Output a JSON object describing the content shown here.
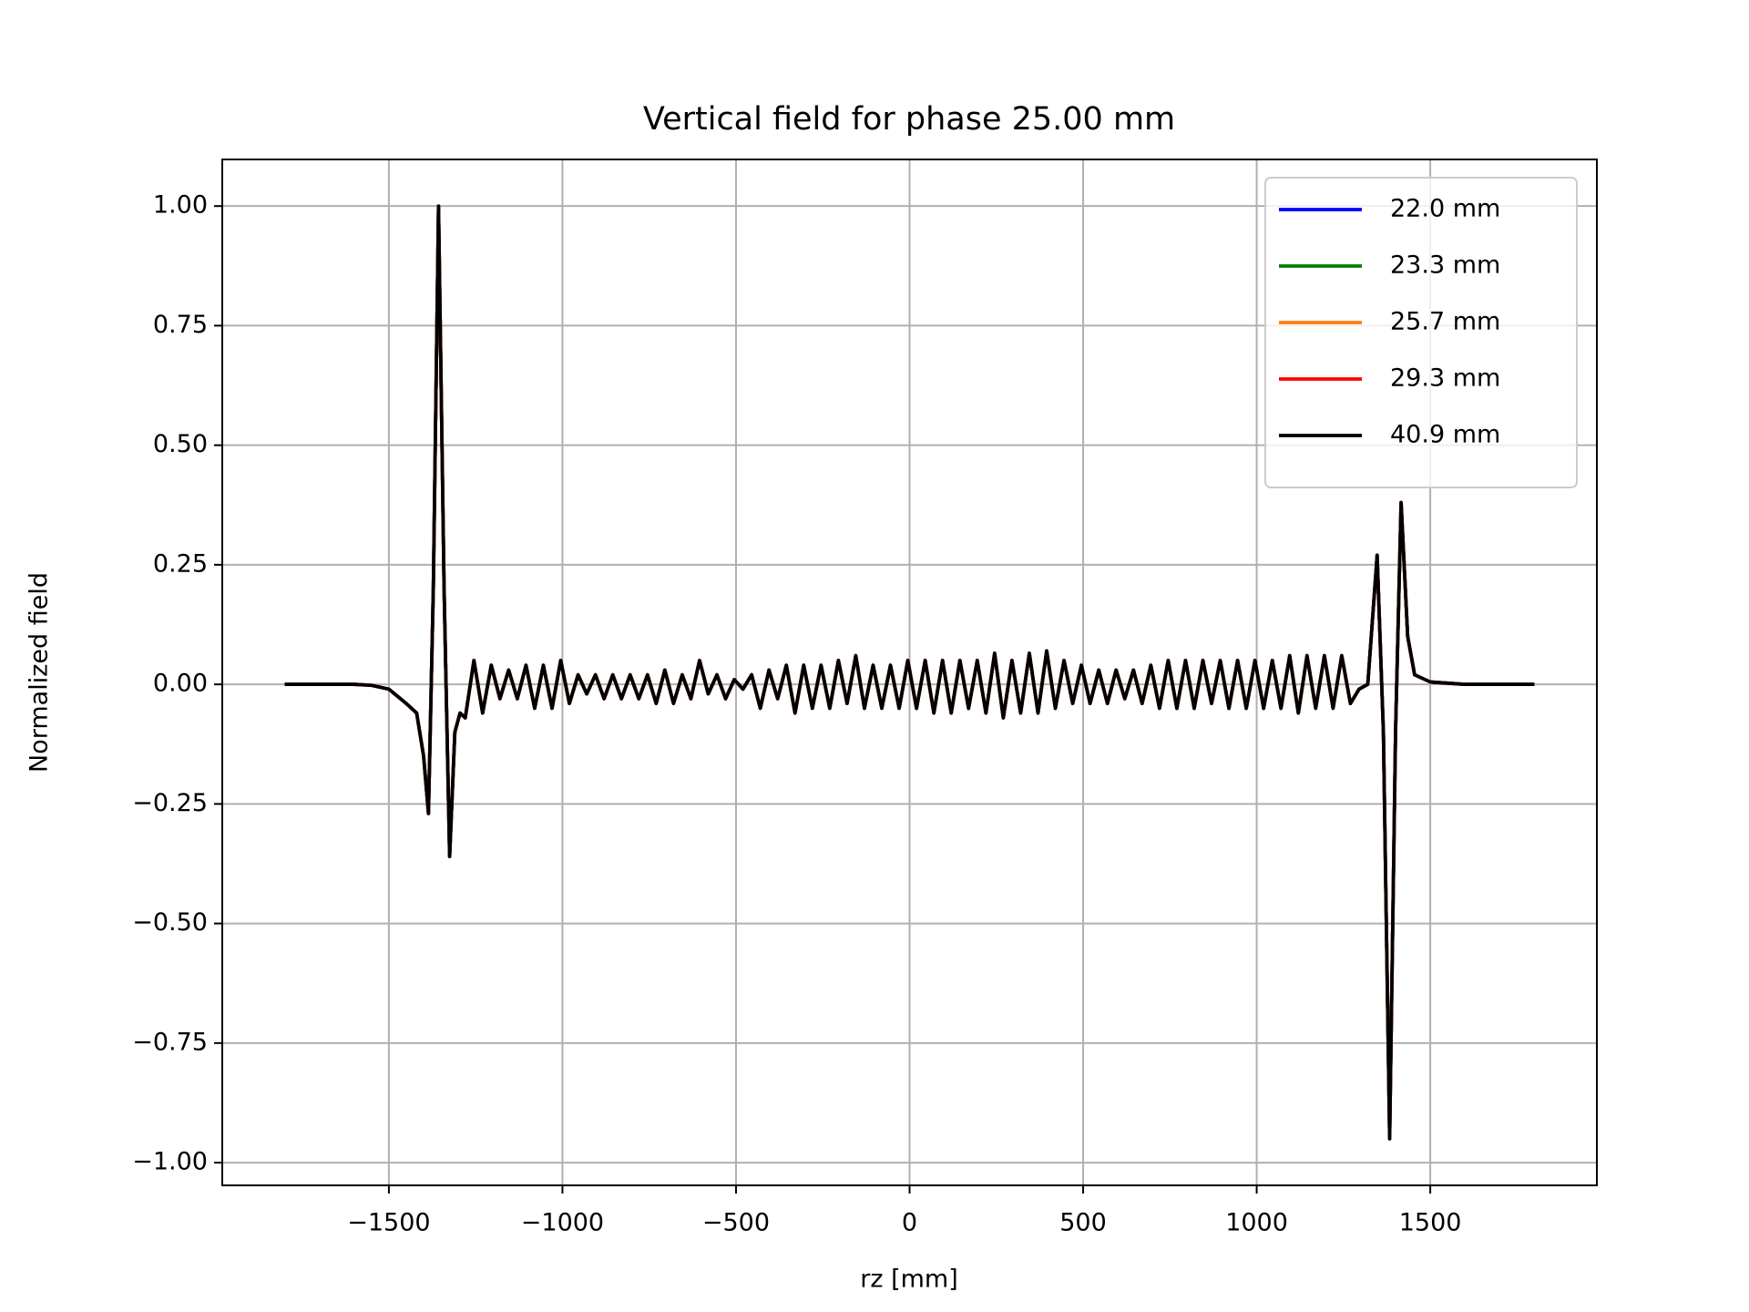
{
  "chart_data": {
    "type": "line",
    "title": "Vertical field for phase 25.00 mm",
    "x_label": "rz [mm]",
    "y_label": "Normalized field",
    "grid": true,
    "legend": "upper right",
    "xlim": [
      -1980,
      1980
    ],
    "xticks": [
      {
        "value": -1500,
        "label": "−1500"
      },
      {
        "value": -1000,
        "label": "−1000"
      },
      {
        "value": -500,
        "label": "−500"
      },
      0,
      500,
      1000,
      1500
    ],
    "ylim": [
      -1.0475,
      1.0975
    ],
    "yticks": [
      {
        "value": -1,
        "label": "−1.00"
      },
      {
        "value": -0.75,
        "label": "−0.75"
      },
      {
        "value": -0.5,
        "label": "−0.50"
      },
      {
        "value": -0.25,
        "label": "−0.25"
      },
      {
        "value": 0,
        "label": "0.00"
      },
      {
        "value": 0.25,
        "label": "0.25"
      },
      {
        "value": 0.5,
        "label": "0.50"
      },
      {
        "value": 0.75,
        "label": "0.75"
      },
      {
        "value": 1,
        "label": "1.00"
      }
    ],
    "x": [
      -1800,
      -1700,
      -1600,
      -1550,
      -1500,
      -1450,
      -1420,
      -1400,
      -1386,
      -1372,
      -1357,
      -1341,
      -1325,
      -1310,
      -1295,
      -1280,
      -1255,
      -1230,
      -1205,
      -1180,
      -1155,
      -1130,
      -1105,
      -1080,
      -1055,
      -1030,
      -1005,
      -980,
      -955,
      -930,
      -905,
      -880,
      -855,
      -830,
      -805,
      -780,
      -755,
      -730,
      -705,
      -680,
      -655,
      -630,
      -605,
      -580,
      -555,
      -530,
      -505,
      -480,
      -455,
      -430,
      -405,
      -380,
      -355,
      -330,
      -305,
      -280,
      -255,
      -230,
      -205,
      -180,
      -155,
      -130,
      -105,
      -80,
      -55,
      -30,
      -5,
      20,
      45,
      70,
      95,
      120,
      145,
      170,
      195,
      220,
      245,
      270,
      295,
      320,
      345,
      370,
      395,
      420,
      445,
      470,
      495,
      520,
      545,
      570,
      595,
      620,
      645,
      670,
      695,
      720,
      745,
      770,
      795,
      820,
      845,
      870,
      895,
      920,
      945,
      970,
      995,
      1020,
      1045,
      1070,
      1095,
      1120,
      1145,
      1170,
      1195,
      1220,
      1245,
      1270,
      1295,
      1320,
      1347,
      1365,
      1383,
      1400,
      1416,
      1435,
      1455,
      1500,
      1600,
      1700,
      1800
    ],
    "series": [
      {
        "name": "22.0 mm",
        "color": "#0000ff",
        "values": [
          0,
          0,
          0,
          -0.002,
          -0.01,
          -0.04,
          -0.06,
          -0.15,
          -0.27,
          0.2,
          1.0,
          0.2,
          -0.36,
          -0.1,
          -0.06,
          -0.07,
          0.05,
          -0.06,
          0.04,
          -0.03,
          0.03,
          -0.03,
          0.04,
          -0.05,
          0.04,
          -0.05,
          0.05,
          -0.04,
          0.02,
          -0.02,
          0.02,
          -0.03,
          0.02,
          -0.03,
          0.02,
          -0.03,
          0.02,
          -0.04,
          0.03,
          -0.04,
          0.02,
          -0.03,
          0.05,
          -0.02,
          0.02,
          -0.03,
          0.01,
          -0.01,
          0.02,
          -0.05,
          0.03,
          -0.03,
          0.04,
          -0.06,
          0.04,
          -0.05,
          0.04,
          -0.05,
          0.05,
          -0.04,
          0.06,
          -0.05,
          0.04,
          -0.05,
          0.04,
          -0.05,
          0.05,
          -0.05,
          0.05,
          -0.06,
          0.05,
          -0.06,
          0.05,
          -0.05,
          0.05,
          -0.06,
          0.065,
          -0.07,
          0.05,
          -0.06,
          0.065,
          -0.06,
          0.07,
          -0.05,
          0.05,
          -0.04,
          0.04,
          -0.04,
          0.03,
          -0.04,
          0.03,
          -0.03,
          0.03,
          -0.04,
          0.04,
          -0.05,
          0.05,
          -0.05,
          0.05,
          -0.05,
          0.05,
          -0.04,
          0.05,
          -0.05,
          0.05,
          -0.05,
          0.05,
          -0.05,
          0.05,
          -0.05,
          0.06,
          -0.06,
          0.06,
          -0.05,
          0.06,
          -0.05,
          0.06,
          -0.04,
          -0.01,
          0.0,
          0.27,
          -0.1,
          -0.95,
          -0.1,
          0.38,
          0.1,
          0.02,
          0.005,
          0,
          0,
          0
        ]
      },
      {
        "name": "23.3 mm",
        "color": "#008000",
        "values": [
          0,
          0,
          0,
          -0.002,
          -0.01,
          -0.04,
          -0.06,
          -0.15,
          -0.27,
          0.2,
          1.0,
          0.2,
          -0.36,
          -0.1,
          -0.06,
          -0.07,
          0.05,
          -0.06,
          0.04,
          -0.03,
          0.03,
          -0.03,
          0.04,
          -0.05,
          0.04,
          -0.05,
          0.05,
          -0.04,
          0.02,
          -0.02,
          0.02,
          -0.03,
          0.02,
          -0.03,
          0.02,
          -0.03,
          0.02,
          -0.04,
          0.03,
          -0.04,
          0.02,
          -0.03,
          0.05,
          -0.02,
          0.02,
          -0.03,
          0.01,
          -0.01,
          0.02,
          -0.05,
          0.03,
          -0.03,
          0.04,
          -0.06,
          0.04,
          -0.05,
          0.04,
          -0.05,
          0.05,
          -0.04,
          0.06,
          -0.05,
          0.04,
          -0.05,
          0.04,
          -0.05,
          0.05,
          -0.05,
          0.05,
          -0.06,
          0.05,
          -0.06,
          0.05,
          -0.05,
          0.05,
          -0.06,
          0.065,
          -0.07,
          0.05,
          -0.06,
          0.065,
          -0.06,
          0.07,
          -0.05,
          0.05,
          -0.04,
          0.04,
          -0.04,
          0.03,
          -0.04,
          0.03,
          -0.03,
          0.03,
          -0.04,
          0.04,
          -0.05,
          0.05,
          -0.05,
          0.05,
          -0.05,
          0.05,
          -0.04,
          0.05,
          -0.05,
          0.05,
          -0.05,
          0.05,
          -0.05,
          0.05,
          -0.05,
          0.06,
          -0.06,
          0.06,
          -0.05,
          0.06,
          -0.05,
          0.06,
          -0.04,
          -0.01,
          0.0,
          0.27,
          -0.1,
          -0.95,
          -0.1,
          0.38,
          0.1,
          0.02,
          0.005,
          0,
          0,
          0
        ]
      },
      {
        "name": "25.7 mm",
        "color": "#ff7f0e",
        "values": [
          0,
          0,
          0,
          -0.002,
          -0.01,
          -0.04,
          -0.06,
          -0.15,
          -0.27,
          0.2,
          1.0,
          0.2,
          -0.36,
          -0.1,
          -0.06,
          -0.07,
          0.05,
          -0.06,
          0.04,
          -0.03,
          0.03,
          -0.03,
          0.04,
          -0.05,
          0.04,
          -0.05,
          0.05,
          -0.04,
          0.02,
          -0.02,
          0.02,
          -0.03,
          0.02,
          -0.03,
          0.02,
          -0.03,
          0.02,
          -0.04,
          0.03,
          -0.04,
          0.02,
          -0.03,
          0.05,
          -0.02,
          0.02,
          -0.03,
          0.01,
          -0.01,
          0.02,
          -0.05,
          0.03,
          -0.03,
          0.04,
          -0.06,
          0.04,
          -0.05,
          0.04,
          -0.05,
          0.05,
          -0.04,
          0.06,
          -0.05,
          0.04,
          -0.05,
          0.04,
          -0.05,
          0.05,
          -0.05,
          0.05,
          -0.06,
          0.05,
          -0.06,
          0.05,
          -0.05,
          0.05,
          -0.06,
          0.065,
          -0.07,
          0.05,
          -0.06,
          0.065,
          -0.06,
          0.07,
          -0.05,
          0.05,
          -0.04,
          0.04,
          -0.04,
          0.03,
          -0.04,
          0.03,
          -0.03,
          0.03,
          -0.04,
          0.04,
          -0.05,
          0.05,
          -0.05,
          0.05,
          -0.05,
          0.05,
          -0.04,
          0.05,
          -0.05,
          0.05,
          -0.05,
          0.05,
          -0.05,
          0.05,
          -0.05,
          0.06,
          -0.06,
          0.06,
          -0.05,
          0.06,
          -0.05,
          0.06,
          -0.04,
          -0.01,
          0.0,
          0.27,
          -0.1,
          -0.95,
          -0.1,
          0.38,
          0.1,
          0.02,
          0.005,
          0,
          0,
          0
        ]
      },
      {
        "name": "29.3 mm",
        "color": "#ff0000",
        "values": [
          0,
          0,
          0,
          -0.002,
          -0.01,
          -0.04,
          -0.06,
          -0.15,
          -0.27,
          0.2,
          1.0,
          0.2,
          -0.36,
          -0.1,
          -0.06,
          -0.07,
          0.05,
          -0.06,
          0.04,
          -0.03,
          0.03,
          -0.03,
          0.04,
          -0.05,
          0.04,
          -0.05,
          0.05,
          -0.04,
          0.02,
          -0.02,
          0.02,
          -0.03,
          0.02,
          -0.03,
          0.02,
          -0.03,
          0.02,
          -0.04,
          0.03,
          -0.04,
          0.02,
          -0.03,
          0.05,
          -0.02,
          0.02,
          -0.03,
          0.01,
          -0.01,
          0.02,
          -0.05,
          0.03,
          -0.03,
          0.04,
          -0.06,
          0.04,
          -0.05,
          0.04,
          -0.05,
          0.05,
          -0.04,
          0.06,
          -0.05,
          0.04,
          -0.05,
          0.04,
          -0.05,
          0.05,
          -0.05,
          0.05,
          -0.06,
          0.05,
          -0.06,
          0.05,
          -0.05,
          0.05,
          -0.06,
          0.065,
          -0.07,
          0.05,
          -0.06,
          0.065,
          -0.06,
          0.07,
          -0.05,
          0.05,
          -0.04,
          0.04,
          -0.04,
          0.03,
          -0.04,
          0.03,
          -0.03,
          0.03,
          -0.04,
          0.04,
          -0.05,
          0.05,
          -0.05,
          0.05,
          -0.05,
          0.05,
          -0.04,
          0.05,
          -0.05,
          0.05,
          -0.05,
          0.05,
          -0.05,
          0.05,
          -0.05,
          0.06,
          -0.06,
          0.06,
          -0.05,
          0.06,
          -0.05,
          0.06,
          -0.04,
          -0.01,
          0.0,
          0.27,
          -0.1,
          -0.95,
          -0.1,
          0.38,
          0.1,
          0.02,
          0.005,
          0,
          0,
          0
        ]
      },
      {
        "name": "40.9 mm",
        "color": "#000000",
        "values": [
          0,
          0,
          0,
          -0.002,
          -0.01,
          -0.04,
          -0.06,
          -0.15,
          -0.27,
          0.2,
          1.0,
          0.2,
          -0.36,
          -0.1,
          -0.06,
          -0.07,
          0.05,
          -0.06,
          0.04,
          -0.03,
          0.03,
          -0.03,
          0.04,
          -0.05,
          0.04,
          -0.05,
          0.05,
          -0.04,
          0.02,
          -0.02,
          0.02,
          -0.03,
          0.02,
          -0.03,
          0.02,
          -0.03,
          0.02,
          -0.04,
          0.03,
          -0.04,
          0.02,
          -0.03,
          0.05,
          -0.02,
          0.02,
          -0.03,
          0.01,
          -0.01,
          0.02,
          -0.05,
          0.03,
          -0.03,
          0.04,
          -0.06,
          0.04,
          -0.05,
          0.04,
          -0.05,
          0.05,
          -0.04,
          0.06,
          -0.05,
          0.04,
          -0.05,
          0.04,
          -0.05,
          0.05,
          -0.05,
          0.05,
          -0.06,
          0.05,
          -0.06,
          0.05,
          -0.05,
          0.05,
          -0.06,
          0.065,
          -0.07,
          0.05,
          -0.06,
          0.065,
          -0.06,
          0.07,
          -0.05,
          0.05,
          -0.04,
          0.04,
          -0.04,
          0.03,
          -0.04,
          0.03,
          -0.03,
          0.03,
          -0.04,
          0.04,
          -0.05,
          0.05,
          -0.05,
          0.05,
          -0.05,
          0.05,
          -0.04,
          0.05,
          -0.05,
          0.05,
          -0.05,
          0.05,
          -0.05,
          0.05,
          -0.05,
          0.06,
          -0.06,
          0.06,
          -0.05,
          0.06,
          -0.05,
          0.06,
          -0.04,
          -0.01,
          0.0,
          0.27,
          -0.1,
          -0.95,
          -0.1,
          0.38,
          0.1,
          0.02,
          0.005,
          0,
          0,
          0
        ]
      }
    ]
  }
}
